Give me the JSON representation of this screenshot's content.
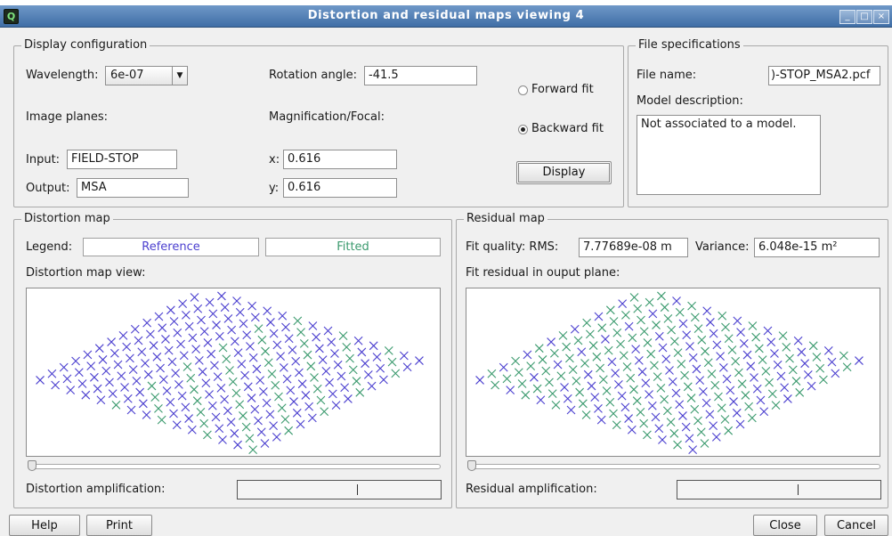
{
  "window": {
    "title": "Distortion and residual maps viewing  4"
  },
  "display_config": {
    "group_title": "Display configuration",
    "wavelength_label": "Wavelength:",
    "wavelength_value": "6e-07",
    "rotation_label": "Rotation angle:",
    "rotation_value": "-41.5",
    "image_planes_label": "Image planes:",
    "magnification_label": "Magnification/Focal:",
    "input_label": "Input:",
    "input_value": "FIELD-STOP",
    "output_label": "Output:",
    "output_value": "MSA",
    "x_label": "x:",
    "x_value": "0.616",
    "y_label": "y:",
    "y_value": "0.616",
    "forward_fit_label": "Forward fit",
    "backward_fit_label": "Backward fit",
    "selected_fit": "backward",
    "display_button": "Display"
  },
  "file_spec": {
    "group_title": "File specifications",
    "file_name_label": "File name:",
    "file_name_value": ")-STOP_MSA2.pcf",
    "model_description_label": "Model description:",
    "model_description_value": "Not associated to a model."
  },
  "distortion_map": {
    "group_title": "Distortion map",
    "legend_label": "Legend:",
    "legend_reference": "Reference",
    "legend_fitted": "Fitted",
    "view_label": "Distortion map view:",
    "amplification_label": "Distortion amplification:"
  },
  "residual_map": {
    "group_title": "Residual map",
    "fit_quality_label": "Fit quality: RMS:",
    "rms_value": "7.77689e-08 m",
    "variance_label": "Variance:",
    "variance_value": "6.048e-15 m²",
    "view_label": "Fit residual in ouput plane:",
    "amplification_label": "Residual amplification:"
  },
  "footer": {
    "help_button": "Help",
    "print_button": "Print",
    "close_button": "Close",
    "cancel_button": "Cancel"
  },
  "colors": {
    "reference": "#4b3fcf",
    "fitted": "#3b9a6e",
    "titlebar": "#4f7db5"
  }
}
